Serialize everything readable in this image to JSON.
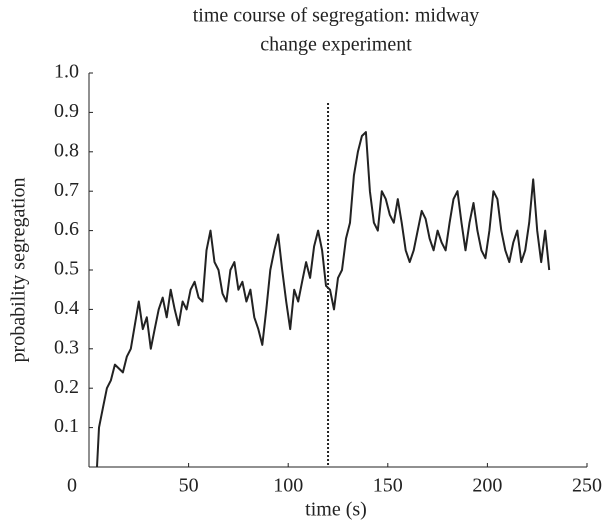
{
  "chart_data": {
    "type": "line",
    "title": [
      "time course of segregation: midway",
      "change experiment"
    ],
    "xlabel": "time (s)",
    "ylabel": "probability segregation",
    "xlim": [
      0,
      250
    ],
    "xticks": [
      0,
      50,
      100,
      150,
      200,
      250
    ],
    "ylim": [
      0,
      1
    ],
    "yticks": [
      0.1,
      0.2,
      0.3,
      0.4,
      0.5,
      0.6,
      0.7,
      0.8,
      0.9,
      {
        "value": 1,
        "label": "1.0"
      }
    ],
    "vline": 120,
    "series": [
      {
        "color": "#222222",
        "x": [
          4,
          5,
          7,
          9,
          11,
          13,
          15,
          17,
          19,
          21,
          23,
          25,
          27,
          29,
          31,
          33,
          35,
          37,
          39,
          41,
          43,
          45,
          47,
          49,
          51,
          53,
          55,
          57,
          59,
          61,
          63,
          65,
          67,
          69,
          71,
          73,
          75,
          77,
          79,
          81,
          83,
          85,
          87,
          89,
          91,
          93,
          95,
          97,
          99,
          101,
          103,
          105,
          107,
          109,
          111,
          113,
          115,
          117,
          119,
          121,
          123,
          125,
          127,
          129,
          131,
          133,
          135,
          137,
          139,
          141,
          143,
          145,
          147,
          149,
          151,
          153,
          155,
          157,
          159,
          161,
          163,
          165,
          167,
          169,
          171,
          173,
          175,
          177,
          179,
          181,
          183,
          185,
          187,
          189,
          191,
          193,
          195,
          197,
          199,
          201,
          203,
          205,
          207,
          209,
          211,
          213,
          215,
          217,
          219,
          221,
          223,
          225,
          227,
          229,
          231
        ],
        "values": [
          0,
          0.1,
          0.15,
          0.2,
          0.22,
          0.26,
          0.25,
          0.24,
          0.28,
          0.3,
          0.36,
          0.42,
          0.35,
          0.38,
          0.3,
          0.35,
          0.4,
          0.43,
          0.38,
          0.45,
          0.4,
          0.36,
          0.42,
          0.4,
          0.45,
          0.47,
          0.43,
          0.42,
          0.55,
          0.6,
          0.52,
          0.5,
          0.44,
          0.42,
          0.5,
          0.52,
          0.45,
          0.47,
          0.42,
          0.45,
          0.38,
          0.35,
          0.31,
          0.4,
          0.5,
          0.55,
          0.59,
          0.5,
          0.42,
          0.35,
          0.45,
          0.42,
          0.47,
          0.52,
          0.48,
          0.56,
          0.6,
          0.55,
          0.46,
          0.45,
          0.4,
          0.48,
          0.5,
          0.58,
          0.62,
          0.74,
          0.8,
          0.84,
          0.85,
          0.7,
          0.62,
          0.6,
          0.7,
          0.68,
          0.64,
          0.62,
          0.68,
          0.62,
          0.55,
          0.52,
          0.55,
          0.6,
          0.65,
          0.63,
          0.58,
          0.55,
          0.6,
          0.57,
          0.55,
          0.62,
          0.68,
          0.7,
          0.62,
          0.55,
          0.62,
          0.67,
          0.6,
          0.55,
          0.53,
          0.6,
          0.7,
          0.68,
          0.6,
          0.55,
          0.52,
          0.57,
          0.6,
          0.52,
          0.55,
          0.62,
          0.73,
          0.6,
          0.52,
          0.6,
          0.5
        ]
      }
    ]
  }
}
